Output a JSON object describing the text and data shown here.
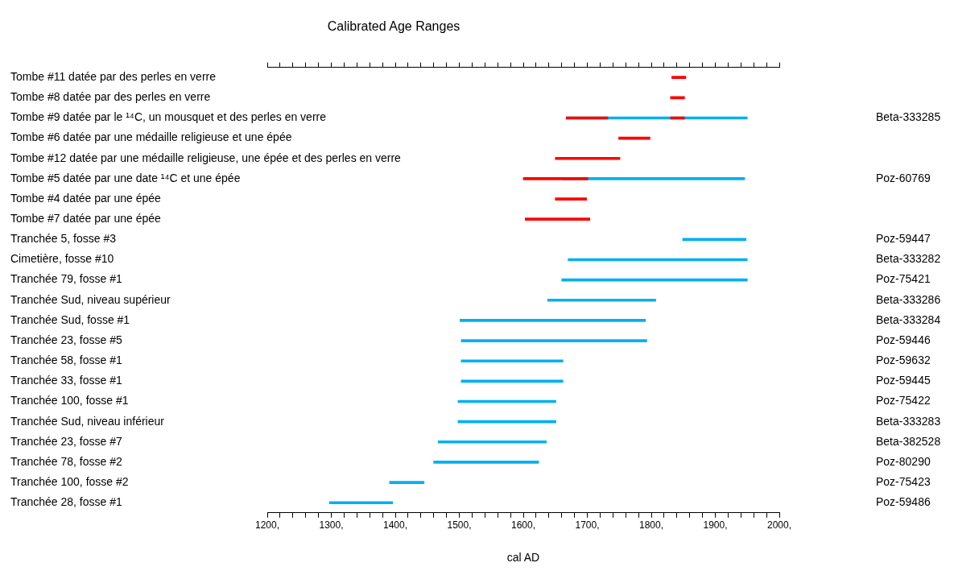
{
  "chart_data": {
    "type": "bar",
    "orientation": "horizontal",
    "title": "Calibrated Age Ranges",
    "xlabel": "cal AD",
    "grid": false,
    "categories": [
      "Tombe #11 datée par des perles en verre",
      "Tombe #8 datée par des perles en verre",
      "Tombe #9 datée par le ¹⁴C, un mousquet et des perles en verre",
      "Tombe #6 datée par une médaille religieuse et une épée",
      "Tombe #12 datée par une médaille religieuse, une épée et des perles en verre",
      "Tombe #5 datée par une date ¹⁴C et une épée",
      "Tombe #4 datée par une épée",
      "Tombe #7 datée par une épée",
      "Tranchée 5, fosse #3",
      "Cimetière, fosse #10",
      "Tranchée 79, fosse #1",
      "Tranchée Sud, niveau supérieur",
      "Tranchée Sud, fosse #1",
      "Tranchée 23, fosse #5",
      "Tranchée 58, fosse #1",
      "Tranchée 33, fosse #1",
      "Tranchée 100, fosse #1",
      "Tranchée Sud, niveau inférieur",
      "Tranchée 23, fosse #7",
      "Tranchée 78, fosse #2",
      "Tranchée 100, fosse #2",
      "Tranchée 28, fosse #1"
    ],
    "y2_categories": [
      null,
      null,
      "Beta-333285",
      null,
      null,
      "Poz-60769",
      null,
      null,
      "Poz-59447",
      "Beta-333282",
      "Poz-75421",
      "Beta-333286",
      "Beta-333284",
      "Poz-59446",
      "Poz-59632",
      "Poz-59445",
      "Poz-75422",
      "Beta-333283",
      "Beta-382528",
      "Poz-80290",
      "Poz-75423",
      "Poz-59486"
    ],
    "series": [
      {
        "color": "#ff0000",
        "base": [
          1832,
          1830,
          1667,
          1749,
          1650,
          1600,
          1650,
          1603,
          null,
          null,
          null,
          null,
          null,
          null,
          null,
          null,
          null,
          null,
          null,
          null,
          null,
          null
        ],
        "values": [
          22,
          22,
          65,
          49,
          101,
          101,
          49,
          101,
          null,
          null,
          null,
          null,
          null,
          null,
          null,
          null,
          null,
          null,
          null,
          null,
          null,
          null
        ]
      },
      {
        "color": "#ff0000",
        "base": [
          null,
          null,
          1830,
          null,
          null,
          null,
          null,
          null,
          null,
          null,
          null,
          null,
          null,
          null,
          null,
          null,
          null,
          null,
          null,
          null,
          null,
          null
        ],
        "values": [
          null,
          null,
          22,
          null,
          null,
          null,
          null,
          null,
          null,
          null,
          null,
          null,
          null,
          null,
          null,
          null,
          null,
          null,
          null,
          null,
          null,
          null
        ]
      },
      {
        "color": "#00b0f0",
        "base": [
          null,
          null,
          1667,
          null,
          null,
          1662,
          null,
          null,
          1849,
          1670,
          1660,
          1638,
          1501,
          1503,
          1503,
          1503,
          1498,
          1498,
          1467,
          1460,
          1391,
          1297
        ],
        "values": [
          null,
          null,
          283,
          null,
          null,
          284,
          null,
          null,
          99,
          280,
          290,
          169,
          290,
          290,
          159,
          159,
          153,
          153,
          169,
          164,
          54,
          99
        ]
      }
    ],
    "xlim": [
      1200,
      2000
    ],
    "xticks": [
      {
        "value": 1200,
        "label": "1200,"
      },
      {
        "value": 1220,
        "label": null
      },
      {
        "value": 1240,
        "label": null
      },
      {
        "value": 1260,
        "label": null
      },
      {
        "value": 1280,
        "label": null
      },
      {
        "value": 1300,
        "label": "1300,"
      },
      {
        "value": 1320,
        "label": null
      },
      {
        "value": 1340,
        "label": null
      },
      {
        "value": 1360,
        "label": null
      },
      {
        "value": 1380,
        "label": null
      },
      {
        "value": 1400,
        "label": "1400,"
      },
      {
        "value": 1420,
        "label": null
      },
      {
        "value": 1440,
        "label": null
      },
      {
        "value": 1460,
        "label": null
      },
      {
        "value": 1480,
        "label": null
      },
      {
        "value": 1500,
        "label": "1500,"
      },
      {
        "value": 1520,
        "label": null
      },
      {
        "value": 1540,
        "label": null
      },
      {
        "value": 1560,
        "label": null
      },
      {
        "value": 1580,
        "label": null
      },
      {
        "value": 1600,
        "label": "1600,"
      },
      {
        "value": 1620,
        "label": null
      },
      {
        "value": 1640,
        "label": null
      },
      {
        "value": 1660,
        "label": null
      },
      {
        "value": 1680,
        "label": null
      },
      {
        "value": 1700,
        "label": "1700,"
      },
      {
        "value": 1720,
        "label": null
      },
      {
        "value": 1740,
        "label": null
      },
      {
        "value": 1760,
        "label": null
      },
      {
        "value": 1780,
        "label": null
      },
      {
        "value": 1800,
        "label": "1800,"
      },
      {
        "value": 1820,
        "label": null
      },
      {
        "value": 1840,
        "label": null
      },
      {
        "value": 1860,
        "label": null
      },
      {
        "value": 1880,
        "label": null
      },
      {
        "value": 1900,
        "label": "1900,"
      },
      {
        "value": 1920,
        "label": null
      },
      {
        "value": 1940,
        "label": null
      },
      {
        "value": 1960,
        "label": null
      },
      {
        "value": 1980,
        "label": null
      },
      {
        "value": 2000,
        "label": "2000,"
      }
    ]
  }
}
